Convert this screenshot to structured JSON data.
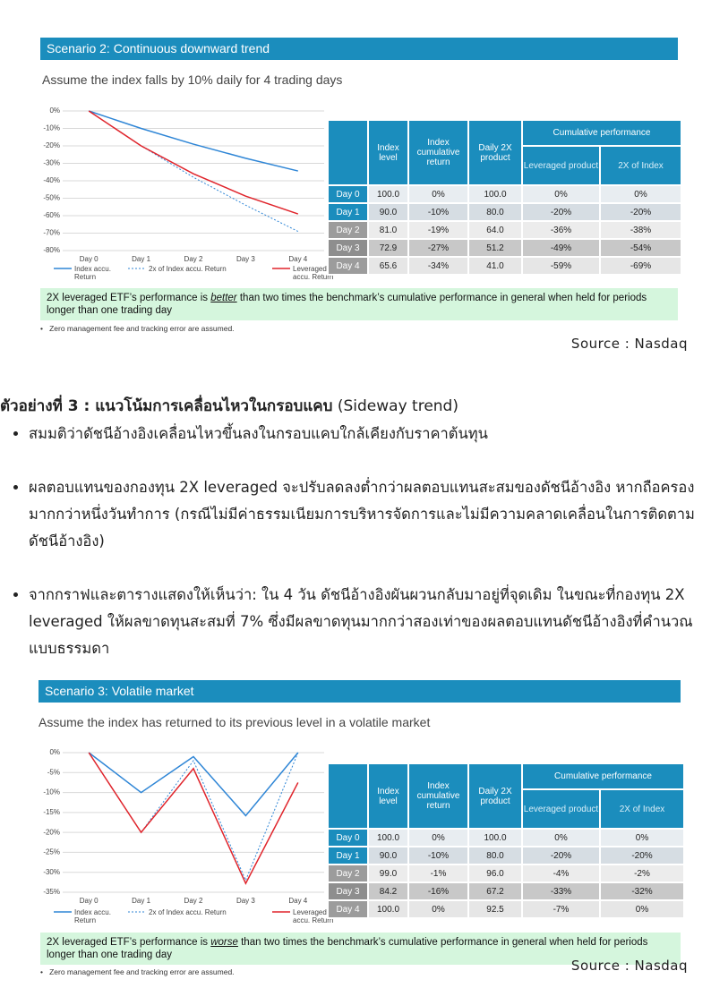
{
  "chart_data": [
    {
      "type": "line",
      "categories": [
        "Day 0",
        "Day 1",
        "Day 2",
        "Day 3",
        "Day 4"
      ],
      "series": [
        {
          "name": "Index accu. Return",
          "color": "#2f86d6",
          "style": "solid",
          "values": [
            0,
            -10,
            -19,
            -27.1,
            -34.4
          ]
        },
        {
          "name": "2x of Index accu. Return",
          "color": "#2f86d6",
          "style": "dotted",
          "values": [
            0,
            -20,
            -38,
            -54,
            -69
          ]
        },
        {
          "name": "Leveraged product accu. Return",
          "color": "#e0242b",
          "style": "solid",
          "values": [
            0,
            -20,
            -36,
            -48.8,
            -59
          ]
        }
      ],
      "ylim": [
        -80,
        0
      ],
      "yticks": [
        {
          "value": 0,
          "label": "0%"
        },
        {
          "value": -10,
          "label": "-10%"
        },
        {
          "value": -20,
          "label": "-20%"
        },
        {
          "value": -30,
          "label": "-30%"
        },
        {
          "value": -40,
          "label": "-40%"
        },
        {
          "value": -50,
          "label": "-50%"
        },
        {
          "value": -60,
          "label": "-60%"
        },
        {
          "value": -70,
          "label": "-70%"
        },
        {
          "value": -80,
          "label": "-80%"
        }
      ],
      "grid": true
    },
    {
      "type": "line",
      "categories": [
        "Day 0",
        "Day 1",
        "Day 2",
        "Day 3",
        "Day 4"
      ],
      "series": [
        {
          "name": "Index accu. Return",
          "color": "#2f86d6",
          "style": "solid",
          "values": [
            0,
            -10,
            -1,
            -15.8,
            0
          ]
        },
        {
          "name": "2x of Index accu. Return",
          "color": "#2f86d6",
          "style": "dotted",
          "values": [
            0,
            -20,
            -2,
            -32,
            0
          ]
        },
        {
          "name": "Leveraged product accu. Return",
          "color": "#e0242b",
          "style": "solid",
          "values": [
            0,
            -20,
            -4,
            -32.8,
            -7.5
          ]
        }
      ],
      "ylim": [
        -35,
        0
      ],
      "yticks": [
        {
          "value": 0,
          "label": "0%"
        },
        {
          "value": -5,
          "label": "-5%"
        },
        {
          "value": -10,
          "label": "-10%"
        },
        {
          "value": -15,
          "label": "-15%"
        },
        {
          "value": -20,
          "label": "-20%"
        },
        {
          "value": -25,
          "label": "-25%"
        },
        {
          "value": -30,
          "label": "-30%"
        },
        {
          "value": -35,
          "label": "-35%"
        }
      ],
      "grid": true
    }
  ],
  "blocks": [
    {
      "title": "Scenario 2: Continuous downward trend",
      "subtitle": "Assume the index falls by 10% daily for 4 trading days",
      "table": {
        "columns": [
          "Index level",
          "Index cumulative return",
          "Daily 2X product"
        ],
        "group": "Cumulative performance",
        "subcolumns": [
          "Leveraged product",
          "2X of Index"
        ],
        "rows": [
          [
            "Day 0",
            "100.0",
            "0%",
            "100.0",
            "0%",
            "0%"
          ],
          [
            "Day 1",
            "90.0",
            "-10%",
            "80.0",
            "-20%",
            "-20%"
          ],
          [
            "Day 2",
            "81.0",
            "-19%",
            "64.0",
            "-36%",
            "-38%"
          ],
          [
            "Day 3",
            "72.9",
            "-27%",
            "51.2",
            "-49%",
            "-54%"
          ],
          [
            "Day 4",
            "65.6",
            "-34%",
            "41.0",
            "-59%",
            "-69%"
          ]
        ]
      },
      "note": [
        "2X leveraged ETF’s performance is ",
        "better",
        " than two times the benchmark’s cumulative performance in general when held for periods longer than one trading day"
      ],
      "footnote": "Zero management fee and tracking error are assumed.",
      "source": "Source : Nasdaq"
    },
    {
      "title": "Scenario 3: Volatile market",
      "subtitle": "Assume the index has returned to its previous level in a volatile market",
      "table": {
        "columns": [
          "Index level",
          "Index cumulative return",
          "Daily 2X product"
        ],
        "group": "Cumulative performance",
        "subcolumns": [
          "Leveraged product",
          "2X of Index"
        ],
        "rows": [
          [
            "Day 0",
            "100.0",
            "0%",
            "100.0",
            "0%",
            "0%"
          ],
          [
            "Day 1",
            "90.0",
            "-10%",
            "80.0",
            "-20%",
            "-20%"
          ],
          [
            "Day 2",
            "99.0",
            "-1%",
            "96.0",
            "-4%",
            "-2%"
          ],
          [
            "Day 3",
            "84.2",
            "-16%",
            "67.2",
            "-33%",
            "-32%"
          ],
          [
            "Day 4",
            "100.0",
            "0%",
            "92.5",
            "-7%",
            "0%"
          ]
        ]
      },
      "note": [
        "2X leveraged ETF’s performance is ",
        "worse",
        " than two times the benchmark’s cumulative performance in general when held for periods longer than one trading day"
      ],
      "footnote": "Zero management fee and tracking error are assumed.",
      "source": "Source : Nasdaq"
    }
  ],
  "heading": {
    "bold": "ตัวอย่างที่ 3 : แนวโน้มการเคลื่อนไหวในกรอบแคบ",
    "rest": "(Sideway trend)"
  },
  "bullets": [
    "สมมติว่าดัชนีอ้างอิงเคลื่อนไหวขึ้นลงในกรอบแคบใกล้เคียงกับราคาต้นทุน",
    "ผลตอบแทนของกองทุน 2X leveraged จะปรับลดลงต่ำกว่าผลตอบแทนสะสมของดัชนีอ้างอิง หากถือครองมากกว่าหนึ่งวันทำการ (กรณีไม่มีค่าธรรมเนียมการบริหารจัดการและไม่มีความคลาดเคลื่อนในการติดตามดัชนีอ้างอิง)",
    "จากกราฟและตารางแสดงให้เห็นว่า: ใน 4 วัน ดัชนีอ้างอิงผันผวนกลับมาอยู่ที่จุดเดิม ในขณะที่กองทุน 2X leveraged ให้ผลขาดทุนสะสมที่ 7% ซึ่งมีผลขาดทุนมากกว่าสองเท่าของผลตอบแทนดัชนีอ้างอิงที่คำนวณแบบธรรมดา"
  ]
}
